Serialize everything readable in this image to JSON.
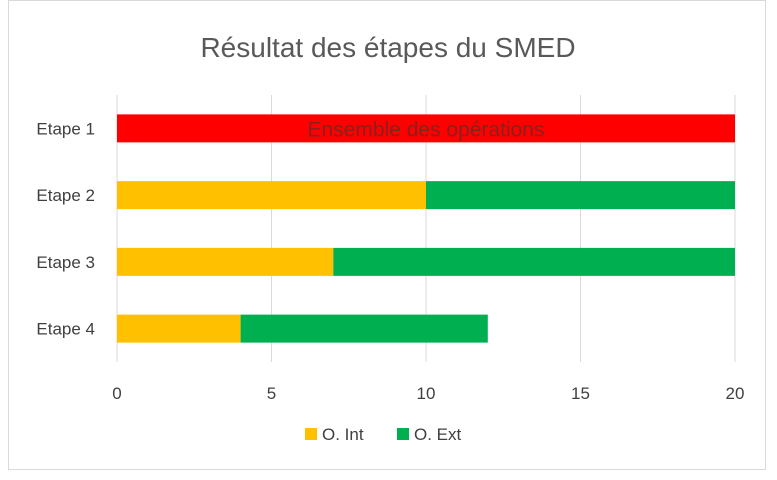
{
  "chart_data": {
    "type": "bar",
    "orientation": "horizontal",
    "stacked": true,
    "title": "Résultat des étapes du SMED",
    "categories": [
      "Etape 1",
      "Etape 2",
      "Etape 3",
      "Etape 4"
    ],
    "whole_bar": {
      "category": "Etape 1",
      "value": 20,
      "color": "#ff0000",
      "label": "Ensemble des opérations"
    },
    "series": [
      {
        "name": "O. Int",
        "color": "#ffc000",
        "values": [
          null,
          10,
          7,
          4
        ]
      },
      {
        "name": "O. Ext",
        "color": "#00b050",
        "values": [
          null,
          10,
          13,
          8
        ]
      }
    ],
    "xlim": [
      0,
      20
    ],
    "xticks": [
      0,
      5,
      10,
      15,
      20
    ],
    "grid": true,
    "legend_position": "bottom"
  }
}
